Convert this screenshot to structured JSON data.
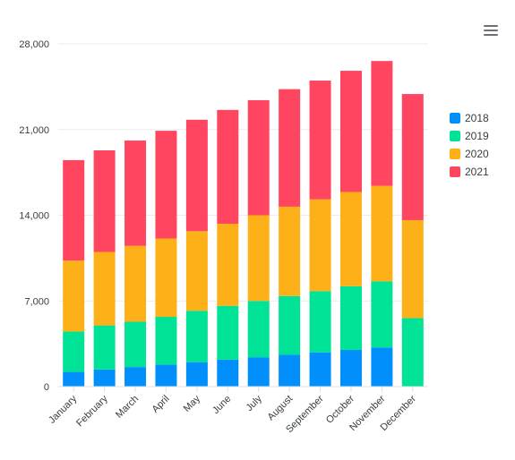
{
  "toolbar": {
    "menu_icon": "hamburger-menu-icon"
  },
  "chart_data": {
    "type": "bar",
    "stacked": true,
    "categories": [
      "January",
      "February",
      "March",
      "April",
      "May",
      "June",
      "July",
      "August",
      "September",
      "October",
      "November",
      "December"
    ],
    "series": [
      {
        "name": "2018",
        "color": "#008ffb",
        "values": [
          1200,
          1400,
          1600,
          1800,
          2000,
          2200,
          2400,
          2600,
          2800,
          3000,
          3200,
          0
        ]
      },
      {
        "name": "2019",
        "color": "#00e396",
        "values": [
          3300,
          3600,
          3700,
          3900,
          4200,
          4400,
          4600,
          4800,
          5000,
          5200,
          5400,
          5600
        ]
      },
      {
        "name": "2020",
        "color": "#feb019",
        "values": [
          5800,
          6000,
          6200,
          6400,
          6500,
          6700,
          7000,
          7300,
          7500,
          7700,
          7800,
          8000
        ]
      },
      {
        "name": "2021",
        "color": "#ff4560",
        "values": [
          8200,
          8300,
          8600,
          8800,
          9100,
          9300,
          9400,
          9600,
          9700,
          9900,
          10200,
          10300
        ]
      }
    ],
    "yticks": [
      "0",
      "7,000",
      "14,000",
      "21,000",
      "28,000"
    ],
    "ylim": [
      0,
      28000
    ],
    "legend_position": "right"
  }
}
